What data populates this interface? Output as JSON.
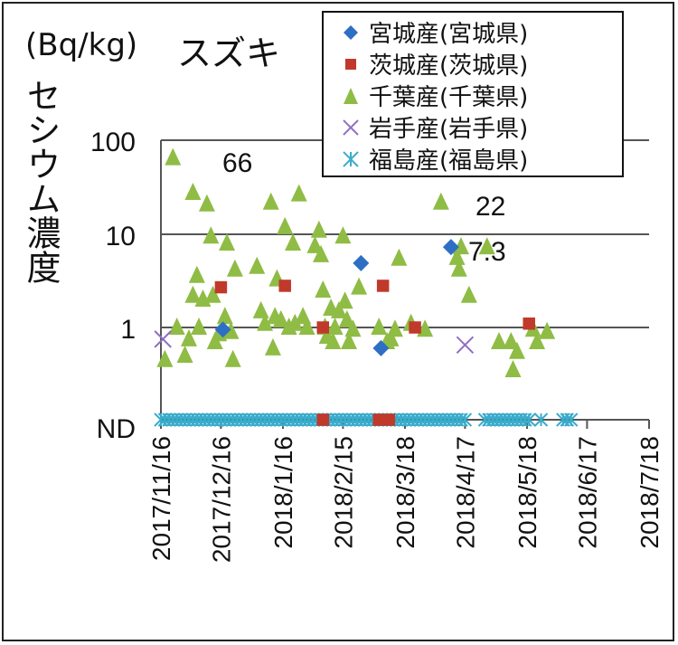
{
  "chart_data": {
    "type": "scatter",
    "title": "スズキ",
    "unit_label": "(Bq/kg)",
    "ylabel": "セシウム濃度",
    "y_scale": "log",
    "y_ticks": [
      "ND",
      "1",
      "10",
      "100"
    ],
    "x_ticks": [
      "2017/11/16",
      "2017/12/16",
      "2018/1/16",
      "2018/2/15",
      "2018/3/18",
      "2018/4/17",
      "2018/5/18",
      "2018/6/17",
      "2018/7/18"
    ],
    "xlim": [
      "2017/11/16",
      "2018/7/18"
    ],
    "ylim": [
      "ND",
      100
    ],
    "grid": "horizontal",
    "legend_position": "top-right",
    "annotations": [
      {
        "text": "66",
        "x": "2017/11/27",
        "y": 66
      },
      {
        "text": "22",
        "x": "2018/4/21",
        "y": 22
      },
      {
        "text": "7.3",
        "x": "2018/4/21",
        "y": 7.3
      }
    ],
    "series": [
      {
        "name": "宮城産(宮城県)",
        "color": "#2e6fc4",
        "marker": "diamond",
        "points": [
          {
            "x": "2017/12/17",
            "y": 0.95
          },
          {
            "x": "2018/2/24",
            "y": 4.9
          },
          {
            "x": "2018/3/6",
            "y": 0.6
          },
          {
            "x": "2018/4/10",
            "y": 7.3
          }
        ]
      },
      {
        "name": "茨城産(茨城県)",
        "color": "#c0392b",
        "marker": "square",
        "points": [
          {
            "x": "2017/12/16",
            "y": 2.7
          },
          {
            "x": "2018/1/17",
            "y": 2.8
          },
          {
            "x": "2018/2/5",
            "y": 1.0
          },
          {
            "x": "2018/3/7",
            "y": 2.8
          },
          {
            "x": "2018/3/23",
            "y": 1.0
          },
          {
            "x": "2018/5/19",
            "y": 1.1
          },
          {
            "x": "2018/2/5",
            "y": "ND"
          },
          {
            "x": "2018/3/5",
            "y": "ND"
          },
          {
            "x": "2018/3/10",
            "y": "ND"
          }
        ]
      },
      {
        "name": "千葉産(千葉県)",
        "color": "#8fbc45",
        "marker": "triangle",
        "points": [
          {
            "x": "2017/11/18",
            "y": 0.45
          },
          {
            "x": "2017/11/22",
            "y": 66
          },
          {
            "x": "2017/11/24",
            "y": 1.0
          },
          {
            "x": "2017/11/28",
            "y": 0.5
          },
          {
            "x": "2017/11/30",
            "y": 0.75
          },
          {
            "x": "2017/12/2",
            "y": 28
          },
          {
            "x": "2017/12/2",
            "y": 2.2
          },
          {
            "x": "2017/12/4",
            "y": 3.6
          },
          {
            "x": "2017/12/5",
            "y": 1.0
          },
          {
            "x": "2017/12/7",
            "y": 2.0
          },
          {
            "x": "2017/12/9",
            "y": 21
          },
          {
            "x": "2017/12/11",
            "y": 9.5
          },
          {
            "x": "2017/12/12",
            "y": 2.2
          },
          {
            "x": "2017/12/13",
            "y": 0.7
          },
          {
            "x": "2017/12/15",
            "y": 0.85
          },
          {
            "x": "2017/12/18",
            "y": 1.3
          },
          {
            "x": "2017/12/19",
            "y": 8.0
          },
          {
            "x": "2017/12/21",
            "y": 0.9
          },
          {
            "x": "2017/12/22",
            "y": 0.45
          },
          {
            "x": "2017/12/23",
            "y": 4.2
          },
          {
            "x": "2018/1/3",
            "y": 4.5
          },
          {
            "x": "2018/1/5",
            "y": 1.5
          },
          {
            "x": "2018/1/7",
            "y": 1.1
          },
          {
            "x": "2018/1/10",
            "y": 22
          },
          {
            "x": "2018/1/11",
            "y": 0.6
          },
          {
            "x": "2018/1/12",
            "y": 1.3
          },
          {
            "x": "2018/1/13",
            "y": 3.3
          },
          {
            "x": "2018/1/15",
            "y": 1.2
          },
          {
            "x": "2018/1/17",
            "y": 12
          },
          {
            "x": "2018/1/19",
            "y": 1.0
          },
          {
            "x": "2018/1/21",
            "y": 8.0
          },
          {
            "x": "2018/1/22",
            "y": 1.1
          },
          {
            "x": "2018/1/24",
            "y": 27
          },
          {
            "x": "2018/1/26",
            "y": 1.3
          },
          {
            "x": "2018/1/28",
            "y": 1.0
          },
          {
            "x": "2018/2/1",
            "y": 7.5
          },
          {
            "x": "2018/2/3",
            "y": 11
          },
          {
            "x": "2018/2/4",
            "y": 6.0
          },
          {
            "x": "2018/2/5",
            "y": 2.5
          },
          {
            "x": "2018/2/6",
            "y": 1.0
          },
          {
            "x": "2018/2/7",
            "y": 0.8
          },
          {
            "x": "2018/2/9",
            "y": 1.6
          },
          {
            "x": "2018/2/10",
            "y": 0.7
          },
          {
            "x": "2018/2/11",
            "y": 1.0
          },
          {
            "x": "2018/2/13",
            "y": 1.5
          },
          {
            "x": "2018/2/15",
            "y": 9.5
          },
          {
            "x": "2018/2/16",
            "y": 1.9
          },
          {
            "x": "2018/2/17",
            "y": 1.2
          },
          {
            "x": "2018/2/18",
            "y": 0.7
          },
          {
            "x": "2018/2/20",
            "y": 0.95
          },
          {
            "x": "2018/2/23",
            "y": 2.7
          },
          {
            "x": "2018/3/5",
            "y": 1.0
          },
          {
            "x": "2018/3/9",
            "y": 0.7
          },
          {
            "x": "2018/3/11",
            "y": 0.75
          },
          {
            "x": "2018/3/13",
            "y": 0.95
          },
          {
            "x": "2018/3/15",
            "y": 5.5
          },
          {
            "x": "2018/3/21",
            "y": 1.1
          },
          {
            "x": "2018/3/28",
            "y": 0.95
          },
          {
            "x": "2018/4/5",
            "y": 22
          },
          {
            "x": "2018/4/13",
            "y": 5.6
          },
          {
            "x": "2018/4/14",
            "y": 4.2
          },
          {
            "x": "2018/4/15",
            "y": 7.3
          },
          {
            "x": "2018/4/19",
            "y": 2.2
          },
          {
            "x": "2018/4/28",
            "y": 7.3
          },
          {
            "x": "2018/5/4",
            "y": 0.7
          },
          {
            "x": "2018/5/10",
            "y": 0.7
          },
          {
            "x": "2018/5/11",
            "y": 0.35
          },
          {
            "x": "2018/5/13",
            "y": 0.55
          },
          {
            "x": "2018/5/21",
            "y": 0.95
          },
          {
            "x": "2018/5/23",
            "y": 0.7
          },
          {
            "x": "2018/5/28",
            "y": 0.9
          }
        ]
      },
      {
        "name": "岩手産(岩手県)",
        "color": "#8e6fc2",
        "marker": "x",
        "points": [
          {
            "x": "2017/11/17",
            "y": 0.75
          },
          {
            "x": "2018/4/17",
            "y": 0.65
          }
        ]
      },
      {
        "name": "福島産(福島県)",
        "color": "#3aaccc",
        "marker": "asterisk",
        "points": [
          {
            "x": "2017/11/16",
            "y": "ND"
          },
          {
            "x": "2017/11/18",
            "y": "ND"
          },
          {
            "x": "2017/11/20",
            "y": "ND"
          },
          {
            "x": "2017/11/22",
            "y": "ND"
          },
          {
            "x": "2017/11/24",
            "y": "ND"
          },
          {
            "x": "2017/11/26",
            "y": "ND"
          },
          {
            "x": "2017/11/28",
            "y": "ND"
          },
          {
            "x": "2017/11/30",
            "y": "ND"
          },
          {
            "x": "2017/12/2",
            "y": "ND"
          },
          {
            "x": "2017/12/4",
            "y": "ND"
          },
          {
            "x": "2017/12/6",
            "y": "ND"
          },
          {
            "x": "2017/12/8",
            "y": "ND"
          },
          {
            "x": "2017/12/10",
            "y": "ND"
          },
          {
            "x": "2017/12/12",
            "y": "ND"
          },
          {
            "x": "2017/12/14",
            "y": "ND"
          },
          {
            "x": "2017/12/16",
            "y": "ND"
          },
          {
            "x": "2017/12/18",
            "y": "ND"
          },
          {
            "x": "2017/12/20",
            "y": "ND"
          },
          {
            "x": "2017/12/22",
            "y": "ND"
          },
          {
            "x": "2017/12/24",
            "y": "ND"
          },
          {
            "x": "2017/12/26",
            "y": "ND"
          },
          {
            "x": "2017/12/28",
            "y": "ND"
          },
          {
            "x": "2017/12/30",
            "y": "ND"
          },
          {
            "x": "2018/1/1",
            "y": "ND"
          },
          {
            "x": "2018/1/3",
            "y": "ND"
          },
          {
            "x": "2018/1/5",
            "y": "ND"
          },
          {
            "x": "2018/1/7",
            "y": "ND"
          },
          {
            "x": "2018/1/9",
            "y": "ND"
          },
          {
            "x": "2018/1/11",
            "y": "ND"
          },
          {
            "x": "2018/1/13",
            "y": "ND"
          },
          {
            "x": "2018/1/15",
            "y": "ND"
          },
          {
            "x": "2018/1/17",
            "y": "ND"
          },
          {
            "x": "2018/1/19",
            "y": "ND"
          },
          {
            "x": "2018/1/21",
            "y": "ND"
          },
          {
            "x": "2018/1/23",
            "y": "ND"
          },
          {
            "x": "2018/1/25",
            "y": "ND"
          },
          {
            "x": "2018/1/27",
            "y": "ND"
          },
          {
            "x": "2018/1/29",
            "y": "ND"
          },
          {
            "x": "2018/1/31",
            "y": "ND"
          },
          {
            "x": "2018/2/2",
            "y": "ND"
          },
          {
            "x": "2018/2/4",
            "y": "ND"
          },
          {
            "x": "2018/2/6",
            "y": "ND"
          },
          {
            "x": "2018/2/8",
            "y": "ND"
          },
          {
            "x": "2018/2/10",
            "y": "ND"
          },
          {
            "x": "2018/2/12",
            "y": "ND"
          },
          {
            "x": "2018/2/14",
            "y": "ND"
          },
          {
            "x": "2018/2/16",
            "y": "ND"
          },
          {
            "x": "2018/2/18",
            "y": "ND"
          },
          {
            "x": "2018/2/20",
            "y": "ND"
          },
          {
            "x": "2018/2/22",
            "y": "ND"
          },
          {
            "x": "2018/2/24",
            "y": "ND"
          },
          {
            "x": "2018/2/26",
            "y": "ND"
          },
          {
            "x": "2018/2/28",
            "y": "ND"
          },
          {
            "x": "2018/3/2",
            "y": "ND"
          },
          {
            "x": "2018/3/4",
            "y": "ND"
          },
          {
            "x": "2018/3/6",
            "y": "ND"
          },
          {
            "x": "2018/3/8",
            "y": "ND"
          },
          {
            "x": "2018/3/10",
            "y": "ND"
          },
          {
            "x": "2018/3/12",
            "y": "ND"
          },
          {
            "x": "2018/3/14",
            "y": "ND"
          },
          {
            "x": "2018/3/16",
            "y": "ND"
          },
          {
            "x": "2018/3/18",
            "y": "ND"
          },
          {
            "x": "2018/3/20",
            "y": "ND"
          },
          {
            "x": "2018/3/22",
            "y": "ND"
          },
          {
            "x": "2018/3/24",
            "y": "ND"
          },
          {
            "x": "2018/3/26",
            "y": "ND"
          },
          {
            "x": "2018/3/28",
            "y": "ND"
          },
          {
            "x": "2018/3/30",
            "y": "ND"
          },
          {
            "x": "2018/4/1",
            "y": "ND"
          },
          {
            "x": "2018/4/3",
            "y": "ND"
          },
          {
            "x": "2018/4/5",
            "y": "ND"
          },
          {
            "x": "2018/4/7",
            "y": "ND"
          },
          {
            "x": "2018/4/9",
            "y": "ND"
          },
          {
            "x": "2018/4/11",
            "y": "ND"
          },
          {
            "x": "2018/4/13",
            "y": "ND"
          },
          {
            "x": "2018/4/15",
            "y": "ND"
          },
          {
            "x": "2018/4/17",
            "y": "ND"
          },
          {
            "x": "2018/4/27",
            "y": "ND"
          },
          {
            "x": "2018/4/29",
            "y": "ND"
          },
          {
            "x": "2018/5/1",
            "y": "ND"
          },
          {
            "x": "2018/5/3",
            "y": "ND"
          },
          {
            "x": "2018/5/5",
            "y": "ND"
          },
          {
            "x": "2018/5/7",
            "y": "ND"
          },
          {
            "x": "2018/5/9",
            "y": "ND"
          },
          {
            "x": "2018/5/11",
            "y": "ND"
          },
          {
            "x": "2018/5/13",
            "y": "ND"
          },
          {
            "x": "2018/5/15",
            "y": "ND"
          },
          {
            "x": "2018/5/17",
            "y": "ND"
          },
          {
            "x": "2018/5/19",
            "y": "ND"
          },
          {
            "x": "2018/5/25",
            "y": "ND"
          },
          {
            "x": "2018/6/5",
            "y": "ND"
          },
          {
            "x": "2018/6/7",
            "y": "ND"
          },
          {
            "x": "2018/6/9",
            "y": "ND"
          }
        ]
      }
    ]
  }
}
